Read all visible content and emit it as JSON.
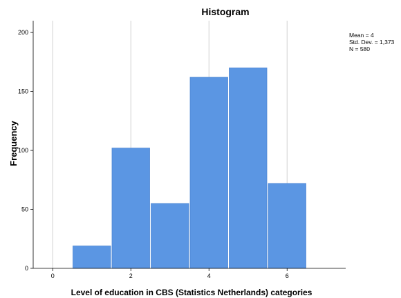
{
  "chart_data": {
    "type": "bar",
    "title": "Histogram",
    "xlabel": "Level of education in CBS (Statistics Netherlands) categories",
    "ylabel": "Frequency",
    "xlim": [
      -0.5,
      7.5
    ],
    "ylim": [
      0,
      210
    ],
    "x_ticks": [
      "0",
      "2",
      "4",
      "6"
    ],
    "y_ticks": [
      "0",
      "50",
      "100",
      "150",
      "200"
    ],
    "grid": true,
    "bar_color": "#5b96e3",
    "bar_width": 1,
    "bins": [
      {
        "center": 1,
        "value": 19
      },
      {
        "center": 2,
        "value": 102
      },
      {
        "center": 3,
        "value": 55
      },
      {
        "center": 4,
        "value": 162
      },
      {
        "center": 5,
        "value": 170
      },
      {
        "center": 6,
        "value": 72
      }
    ],
    "stats": {
      "mean": "Mean = 4",
      "std_dev": "Std. Dev. = 1,373",
      "n": "N = 580"
    }
  }
}
